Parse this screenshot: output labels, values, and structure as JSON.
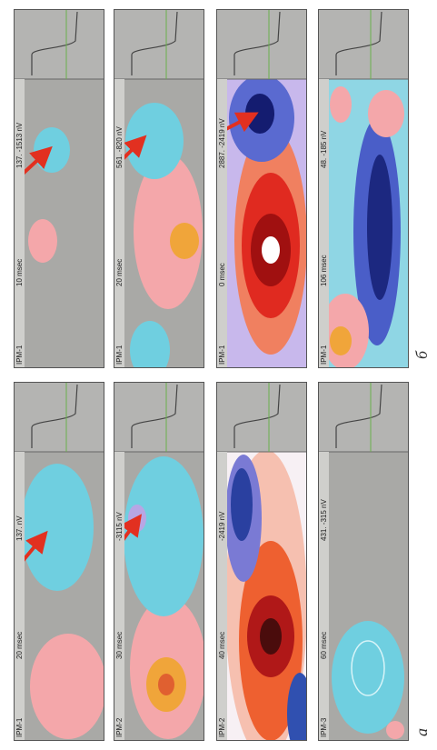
{
  "panels": [
    {
      "label": "IPM-1",
      "time": "20 msec",
      "range": "137.  nV"
    },
    {
      "label": "IPM-2",
      "time": "30 msec",
      "range": "-3115 nV"
    },
    {
      "label": "IPM-2",
      "time": "40 msec",
      "range": "-2419 nV"
    },
    {
      "label": "IPM-3",
      "time": "60 msec",
      "range": "431.  -315 nV"
    },
    {
      "label": "IPM-1",
      "time": "10 msec",
      "range": "137.  -1513 nV"
    },
    {
      "label": "IPM-1",
      "time": "20 msec",
      "range": "561.  -820 nV"
    },
    {
      "label": "IPM-1",
      "time": "0 msec",
      "range": "2887.  -2419 nV"
    },
    {
      "label": "IPM-1",
      "time": "106 msec",
      "range": "48.  -185 nV"
    }
  ],
  "figure_labels": {
    "a": "а",
    "b": "б"
  }
}
